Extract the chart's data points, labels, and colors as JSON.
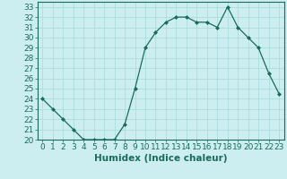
{
  "x": [
    0,
    1,
    2,
    3,
    4,
    5,
    6,
    7,
    8,
    9,
    10,
    11,
    12,
    13,
    14,
    15,
    16,
    17,
    18,
    19,
    20,
    21,
    22,
    23
  ],
  "y": [
    24,
    23,
    22,
    21,
    20,
    20,
    20,
    20,
    21.5,
    25,
    29,
    30.5,
    31.5,
    32,
    32,
    31.5,
    31.5,
    31,
    33,
    31,
    30,
    29,
    26.5,
    24.5
  ],
  "line_color": "#1a6b5a",
  "marker": "D",
  "marker_size": 2,
  "bg_color": "#cceef0",
  "grid_color": "#aadddd",
  "xlabel": "Humidex (Indice chaleur)",
  "xlim": [
    -0.5,
    23.5
  ],
  "ylim": [
    20,
    33.5
  ],
  "yticks": [
    20,
    21,
    22,
    23,
    24,
    25,
    26,
    27,
    28,
    29,
    30,
    31,
    32,
    33
  ],
  "xticks": [
    0,
    1,
    2,
    3,
    4,
    5,
    6,
    7,
    8,
    9,
    10,
    11,
    12,
    13,
    14,
    15,
    16,
    17,
    18,
    19,
    20,
    21,
    22,
    23
  ],
  "tick_fontsize": 6.5,
  "label_fontsize": 7.5
}
